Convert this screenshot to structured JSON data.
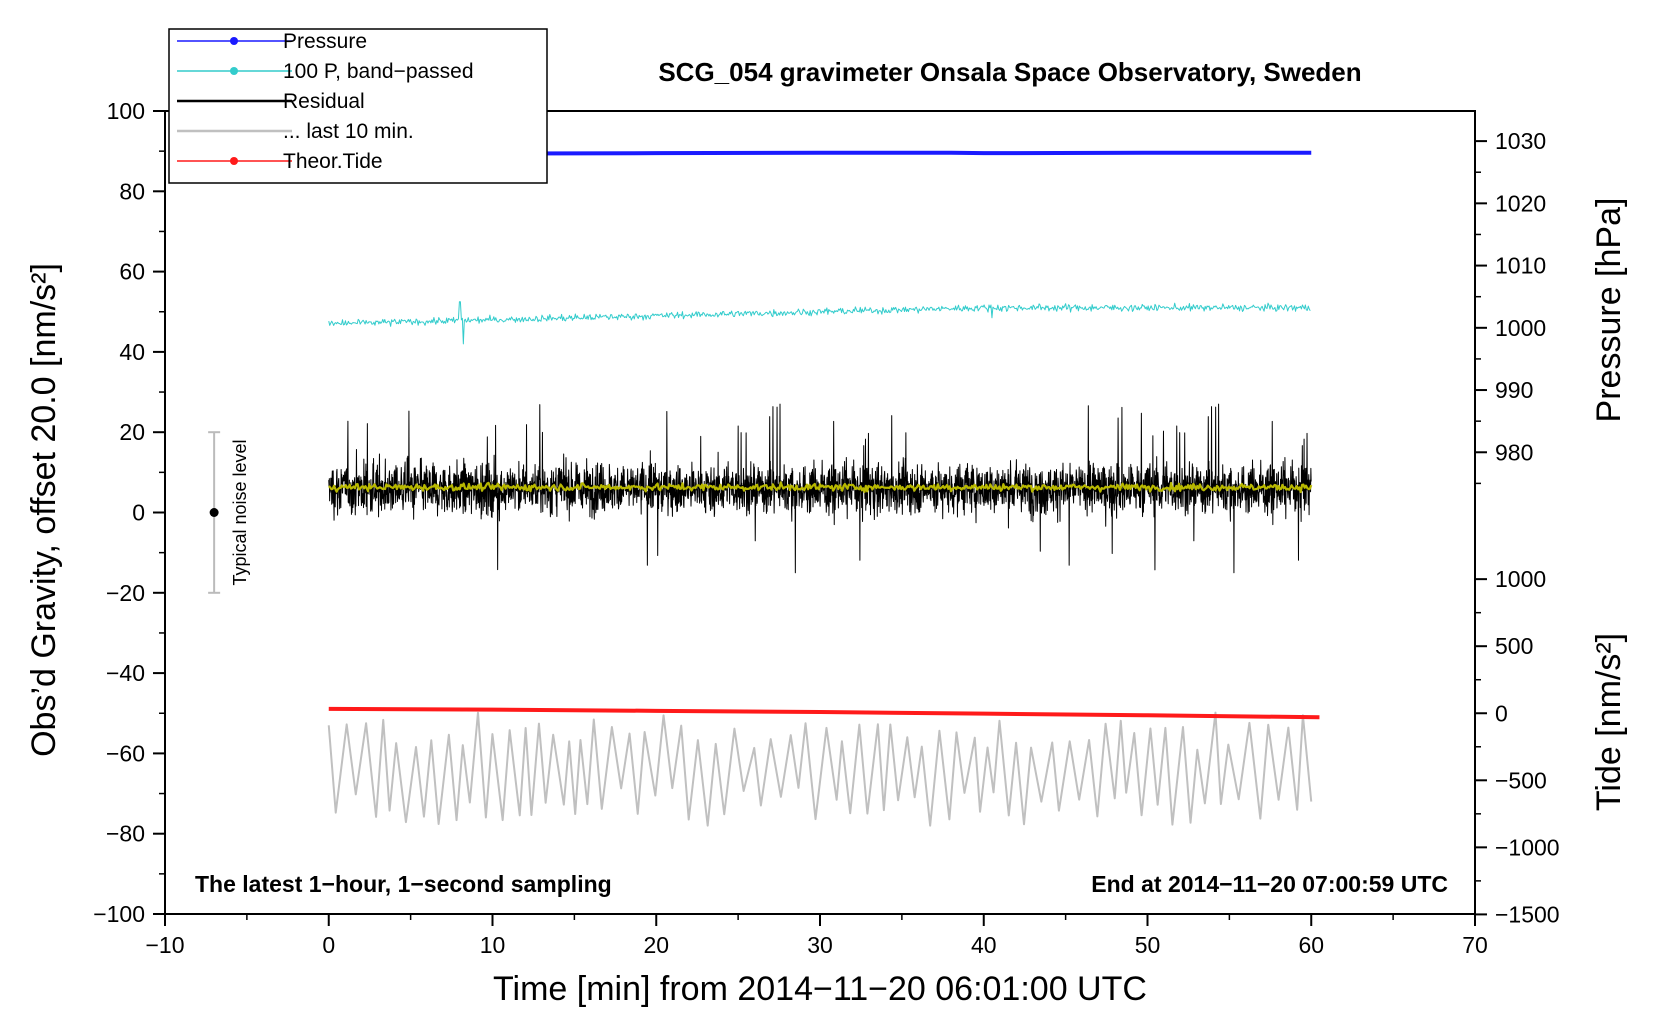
{
  "chart_data": {
    "type": "line",
    "title": "SCG_054 gravimeter Onsala Space Observatory, Sweden",
    "xlabel": "Time [min] from 2014−11−20 06:01:00 UTC",
    "ylabel": "Obs’d Gravity, offset 20.0 [nm/s²]",
    "ylabel_right_top": "Pressure [hPa]",
    "ylabel_right_bottom": "Tide [nm/s²]",
    "xlim": [
      -10,
      70
    ],
    "ylim": [
      -100,
      100
    ],
    "x_ticks": [
      -10,
      0,
      10,
      20,
      30,
      40,
      50,
      60,
      70
    ],
    "x_tick_labels": [
      "−10",
      "0",
      "10",
      "20",
      "30",
      "40",
      "50",
      "60",
      "70"
    ],
    "y_ticks": [
      -100,
      -80,
      -60,
      -40,
      -20,
      0,
      20,
      40,
      60,
      80,
      100
    ],
    "y_tick_labels": [
      "−100",
      "−80",
      "−60",
      "−40",
      "−20",
      "0",
      "20",
      "40",
      "60",
      "80",
      "100"
    ],
    "pressure_axis": {
      "ticks": [
        980,
        990,
        1000,
        1010,
        1020,
        1030
      ],
      "labels": [
        "980",
        "990",
        "1000",
        "1010",
        "1020",
        "1030"
      ],
      "gravity_at_1030": 92.5,
      "gravity_per_hpa": 1.55
    },
    "tide_axis": {
      "ticks": [
        -1500,
        -1000,
        -500,
        0,
        500,
        1000
      ],
      "labels": [
        "−1500",
        "−1000",
        "−500",
        "0",
        "500",
        "1000"
      ],
      "gravity_at_0": -50,
      "gravity_per_unit": 0.0334
    },
    "notes": {
      "left": "The latest 1−hour, 1−second sampling",
      "right": "End at 2014−11−20 07:00:59 UTC"
    },
    "noise_level": {
      "label": "Typical noise level",
      "x": -7,
      "center": 0,
      "low": -20,
      "high": 20
    },
    "legend": [
      {
        "label": "Pressure",
        "color": "#1a1aff",
        "marker": true
      },
      {
        "label": "100 P, band−passed",
        "color": "#33cccc",
        "marker": true
      },
      {
        "label": "Residual",
        "color": "#000000",
        "marker": false
      },
      {
        "label": "... last 10 min.",
        "color": "#c0c0c0",
        "marker": false
      },
      {
        "label": "Theor.Tide",
        "color": "#ff1a1a",
        "marker": true
      }
    ],
    "series": [
      {
        "name": "Pressure",
        "color": "#1a1aff",
        "width": 4,
        "x": [
          0,
          10,
          20,
          30,
          38,
          40,
          50,
          60
        ],
        "y": [
          89.3,
          89.4,
          89.5,
          89.6,
          89.6,
          89.5,
          89.6,
          89.6
        ]
      },
      {
        "name": "100 P, band−passed",
        "color": "#33cccc",
        "width": 1,
        "x_start": 0,
        "x_end": 60,
        "baseline_start": 47,
        "baseline_end": 51,
        "amplitude": 1.2,
        "spikes": [
          {
            "x": 8,
            "y": 52.5
          },
          {
            "x": 8.2,
            "y": 42
          },
          {
            "x": 40.5,
            "y": 48.5
          },
          {
            "x": 60,
            "y": 53
          }
        ]
      },
      {
        "name": "Residual",
        "color": "#000000",
        "width": 1,
        "x_start": 0,
        "x_end": 60,
        "baseline": 6,
        "amplitude": 8,
        "max_peak": 28,
        "min_trough": -15
      },
      {
        "name": "Residual smoothed",
        "color": "#b8b800",
        "width": 2.2,
        "x_start": 0,
        "x_end": 60,
        "baseline": 6.3,
        "amplitude": 0.6
      },
      {
        "name": "... last 10 min.",
        "color": "#c0c0c0",
        "width": 2,
        "x_start": 0,
        "x_end": 60,
        "baseline": -64,
        "amplitude": 9,
        "min": -78,
        "max": -47
      },
      {
        "name": "Theor.Tide",
        "color": "#ff1a1a",
        "width": 4,
        "x": [
          0,
          10,
          20,
          30,
          40,
          50,
          60.5
        ],
        "y": [
          -48.9,
          -49.1,
          -49.4,
          -49.7,
          -50.1,
          -50.5,
          -51.0
        ]
      }
    ]
  }
}
